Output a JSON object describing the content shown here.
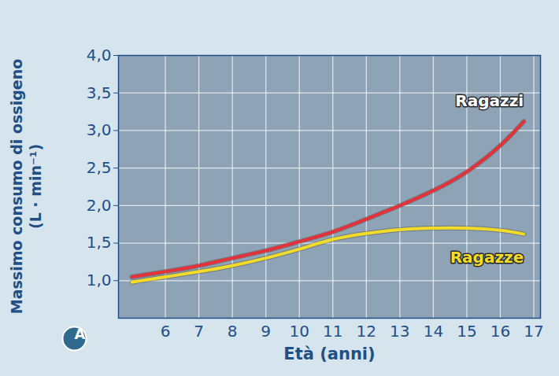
{
  "chart_data": {
    "type": "line",
    "x_label": "Età (anni)",
    "y_label": "Massimo consumo di ossigeno (L · min⁻¹)",
    "annotations": [
      "A"
    ],
    "x": [
      5,
      6,
      7,
      8,
      9,
      10,
      11,
      12,
      13,
      14,
      15,
      16,
      16.7
    ],
    "series": [
      {
        "name": "Ragazze",
        "color": "#f2dc2a",
        "values": [
          0.98,
          1.05,
          1.12,
          1.2,
          1.3,
          1.42,
          1.55,
          1.63,
          1.68,
          1.7,
          1.7,
          1.67,
          1.62
        ]
      },
      {
        "name": "Ragazzi",
        "color": "#e5323a",
        "values": [
          1.05,
          1.12,
          1.2,
          1.3,
          1.4,
          1.52,
          1.65,
          1.82,
          2.0,
          2.2,
          2.45,
          2.8,
          3.12
        ]
      }
    ],
    "xlim": [
      4.6,
      17.2
    ],
    "xticks": [
      6,
      7,
      8,
      9,
      10,
      11,
      12,
      13,
      14,
      15,
      16,
      17
    ],
    "ylim": [
      0.5,
      4.0
    ],
    "yticks": [
      {
        "value": 1.0,
        "label": "1,0"
      },
      {
        "value": 1.5,
        "label": "1,5"
      },
      {
        "value": 2.0,
        "label": "2,0"
      },
      {
        "value": 2.5,
        "label": "2,5"
      },
      {
        "value": 3.0,
        "label": "3,0"
      },
      {
        "value": 3.5,
        "label": "3,5"
      },
      {
        "value": 4.0,
        "label": "4,0"
      }
    ],
    "grid": true
  }
}
